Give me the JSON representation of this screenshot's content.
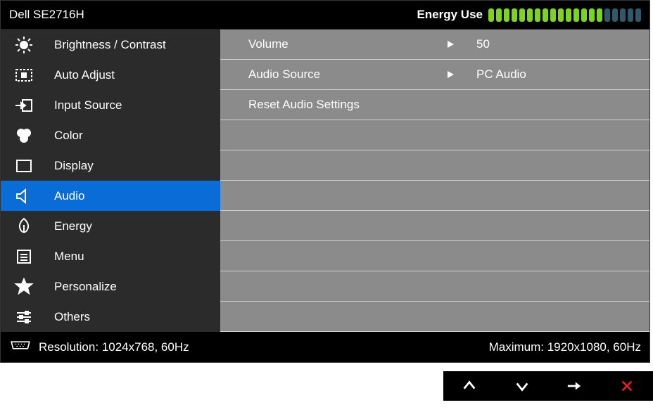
{
  "header": {
    "model": "Dell SE2716H",
    "energy_label": "Energy Use",
    "energy_segments_total": 20,
    "energy_segments_on": 15,
    "energy_on_color": "#7ed321",
    "energy_off_color": "#2d5a6a"
  },
  "sidebar": {
    "bg_color": "#2b2b2b",
    "active_bg_color": "#0a6cd6",
    "items": [
      {
        "id": "brightness",
        "label": "Brightness / Contrast",
        "active": false
      },
      {
        "id": "auto-adjust",
        "label": "Auto Adjust",
        "active": false
      },
      {
        "id": "input-source",
        "label": "Input Source",
        "active": false
      },
      {
        "id": "color",
        "label": "Color",
        "active": false
      },
      {
        "id": "display",
        "label": "Display",
        "active": false
      },
      {
        "id": "audio",
        "label": "Audio",
        "active": true
      },
      {
        "id": "energy",
        "label": "Energy",
        "active": false
      },
      {
        "id": "menu",
        "label": "Menu",
        "active": false
      },
      {
        "id": "personalize",
        "label": "Personalize",
        "active": false
      },
      {
        "id": "others",
        "label": "Others",
        "active": false
      }
    ]
  },
  "content": {
    "bg_color": "#8b8b8b",
    "divider_color": "#d0d0d0",
    "rows": [
      {
        "label": "Volume",
        "value": "50",
        "has_arrow": true
      },
      {
        "label": "Audio Source",
        "value": "PC Audio",
        "has_arrow": true
      },
      {
        "label": "Reset Audio Settings",
        "value": "",
        "has_arrow": false
      }
    ],
    "empty_rows": 7
  },
  "footer": {
    "resolution_prefix": "Resolution:",
    "resolution_value": "1024x768, 60Hz",
    "maximum_prefix": "Maximum:",
    "maximum_value": "1920x1080, 60Hz"
  },
  "buttons": {
    "close_color": "#e02020",
    "bg_color": "#000000"
  }
}
